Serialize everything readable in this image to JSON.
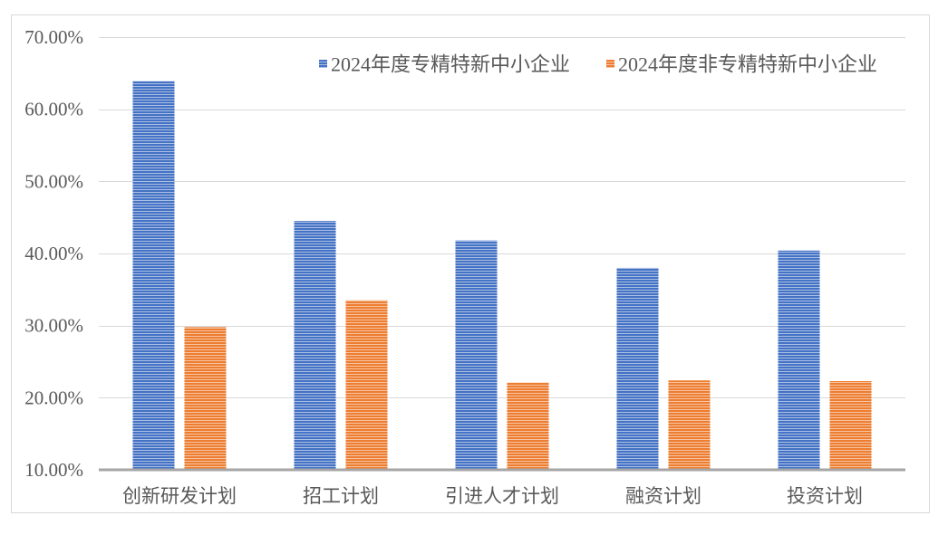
{
  "chart_data": {
    "type": "bar",
    "categories": [
      "创新研发计划",
      "招工计划",
      "引进人才计划",
      "融资计划",
      "投资计划"
    ],
    "series": [
      {
        "name": "2024年度专精特新中小企业",
        "color": "#4472C4",
        "values": [
          63.9,
          44.5,
          41.8,
          38.0,
          40.4
        ]
      },
      {
        "name": "2024年度非专精特新中小企业",
        "color": "#ED7D31",
        "values": [
          29.8,
          33.5,
          22.1,
          22.4,
          22.3
        ]
      }
    ],
    "yticks": [
      10,
      20,
      30,
      40,
      50,
      60,
      70
    ],
    "ytick_labels": [
      "10.00%",
      "20.00%",
      "30.00%",
      "40.00%",
      "50.00%",
      "60.00%",
      "70.00%"
    ],
    "ylim": [
      10,
      70
    ],
    "y_unit": "percent",
    "grid": true,
    "legend_position": "top-right"
  }
}
